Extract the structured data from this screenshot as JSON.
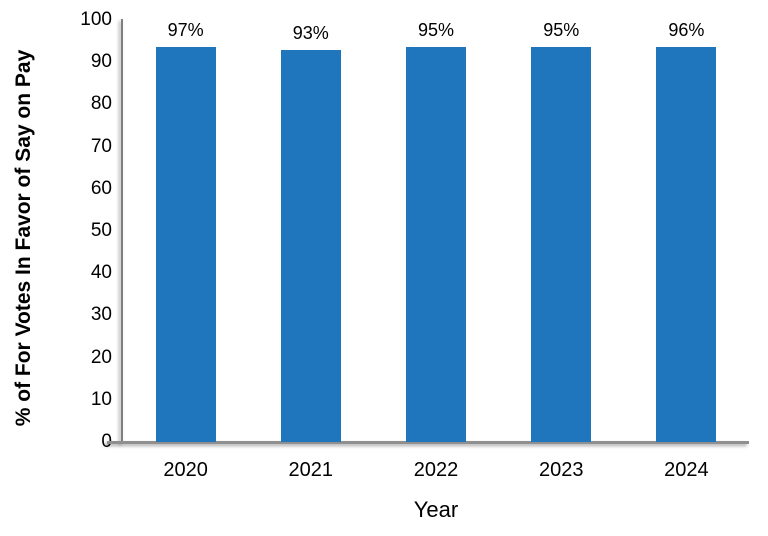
{
  "chart_data": {
    "type": "bar",
    "title": "",
    "categories": [
      "2020",
      "2021",
      "2022",
      "2023",
      "2024"
    ],
    "values": [
      97,
      93,
      95,
      95,
      96
    ],
    "data_labels": [
      "97%",
      "93%",
      "95%",
      "95%",
      "96%"
    ],
    "xlabel": "Year",
    "ylabel": "% of For Votes In Favor of Say on Pay",
    "ylim": [
      0,
      100
    ],
    "yticks": [
      0,
      10,
      20,
      30,
      40,
      50,
      60,
      70,
      80,
      90,
      100
    ],
    "grid": false,
    "legend": "none",
    "bar_color": "#2076bd",
    "axis_color": "#7f7f7f",
    "text_color": "#000000"
  }
}
